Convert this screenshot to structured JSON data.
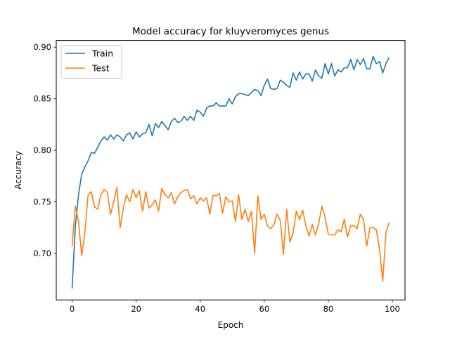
{
  "chart_data": {
    "type": "line",
    "title": "Model accuracy for kluyveromyces genus",
    "xlabel": "Epoch",
    "ylabel": "Accuracy",
    "xlim": [
      -4.95,
      103.95
    ],
    "ylim": [
      0.655,
      0.9065
    ],
    "xticks": [
      0,
      20,
      40,
      60,
      80,
      100
    ],
    "xtick_labels": [
      "0",
      "20",
      "40",
      "60",
      "80",
      "100"
    ],
    "yticks": [
      0.7,
      0.75,
      0.8,
      0.85,
      0.9
    ],
    "ytick_labels": [
      "0.70",
      "0.75",
      "0.80",
      "0.85",
      "0.90"
    ],
    "grid": false,
    "legend_position": "top-left",
    "x": [
      0,
      1,
      2,
      3,
      4,
      5,
      6,
      7,
      8,
      9,
      10,
      11,
      12,
      13,
      14,
      15,
      16,
      17,
      18,
      19,
      20,
      21,
      22,
      23,
      24,
      25,
      26,
      27,
      28,
      29,
      30,
      31,
      32,
      33,
      34,
      35,
      36,
      37,
      38,
      39,
      40,
      41,
      42,
      43,
      44,
      45,
      46,
      47,
      48,
      49,
      50,
      51,
      52,
      53,
      54,
      55,
      56,
      57,
      58,
      59,
      60,
      61,
      62,
      63,
      64,
      65,
      66,
      67,
      68,
      69,
      70,
      71,
      72,
      73,
      74,
      75,
      76,
      77,
      78,
      79,
      80,
      81,
      82,
      83,
      84,
      85,
      86,
      87,
      88,
      89,
      90,
      91,
      92,
      93,
      94,
      95,
      96,
      97,
      98,
      99
    ],
    "series": [
      {
        "name": "Train",
        "color": "#1f77b4",
        "values": [
          0.666,
          0.726,
          0.757,
          0.777,
          0.784,
          0.79,
          0.798,
          0.797,
          0.803,
          0.809,
          0.813,
          0.81,
          0.815,
          0.811,
          0.815,
          0.813,
          0.809,
          0.815,
          0.817,
          0.811,
          0.818,
          0.813,
          0.816,
          0.817,
          0.825,
          0.814,
          0.826,
          0.822,
          0.828,
          0.824,
          0.82,
          0.828,
          0.831,
          0.827,
          0.828,
          0.833,
          0.829,
          0.833,
          0.829,
          0.839,
          0.837,
          0.833,
          0.841,
          0.843,
          0.843,
          0.846,
          0.843,
          0.843,
          0.843,
          0.85,
          0.845,
          0.852,
          0.855,
          0.855,
          0.854,
          0.853,
          0.856,
          0.859,
          0.858,
          0.853,
          0.863,
          0.869,
          0.86,
          0.859,
          0.86,
          0.868,
          0.866,
          0.863,
          0.861,
          0.875,
          0.868,
          0.876,
          0.869,
          0.874,
          0.874,
          0.867,
          0.878,
          0.872,
          0.87,
          0.884,
          0.874,
          0.884,
          0.872,
          0.878,
          0.876,
          0.88,
          0.88,
          0.888,
          0.878,
          0.888,
          0.883,
          0.889,
          0.879,
          0.879,
          0.891,
          0.884,
          0.886,
          0.875,
          0.884,
          0.89
        ]
      },
      {
        "name": "Test",
        "color": "#ff7f0e",
        "values": [
          0.707,
          0.746,
          0.731,
          0.698,
          0.721,
          0.757,
          0.76,
          0.745,
          0.743,
          0.757,
          0.762,
          0.759,
          0.738,
          0.75,
          0.764,
          0.725,
          0.744,
          0.757,
          0.75,
          0.762,
          0.754,
          0.761,
          0.741,
          0.76,
          0.744,
          0.747,
          0.752,
          0.741,
          0.763,
          0.757,
          0.754,
          0.759,
          0.748,
          0.755,
          0.759,
          0.761,
          0.762,
          0.753,
          0.756,
          0.748,
          0.754,
          0.751,
          0.754,
          0.738,
          0.756,
          0.756,
          0.758,
          0.739,
          0.755,
          0.75,
          0.751,
          0.731,
          0.757,
          0.733,
          0.743,
          0.731,
          0.741,
          0.7,
          0.756,
          0.733,
          0.738,
          0.727,
          0.724,
          0.728,
          0.738,
          0.732,
          0.699,
          0.743,
          0.711,
          0.72,
          0.741,
          0.733,
          0.742,
          0.727,
          0.717,
          0.728,
          0.718,
          0.729,
          0.746,
          0.735,
          0.719,
          0.718,
          0.718,
          0.723,
          0.721,
          0.733,
          0.716,
          0.727,
          0.727,
          0.724,
          0.738,
          0.733,
          0.707,
          0.725,
          0.725,
          0.723,
          0.704,
          0.673,
          0.72,
          0.73
        ]
      }
    ]
  }
}
